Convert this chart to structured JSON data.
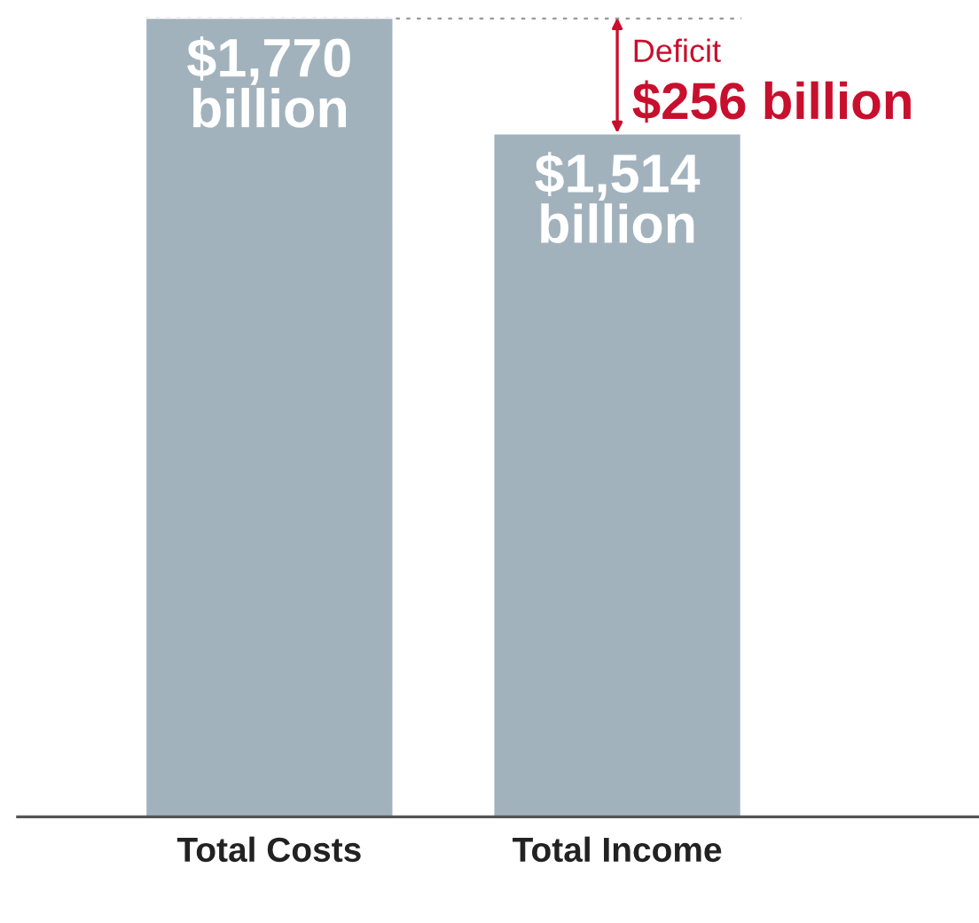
{
  "chart_data": {
    "type": "bar",
    "categories": [
      "Total Costs",
      "Total Income"
    ],
    "values": [
      1770,
      1514
    ],
    "value_labels": [
      "$1,770 billion",
      "$1,514 billion"
    ],
    "color": "#a2b2bd",
    "ylim": [
      0,
      1770
    ],
    "tick_labels": "x",
    "grid": false,
    "ref_lines": [
      {
        "axis": "y",
        "value": 1770,
        "color": "#999999",
        "line_style": "dotted"
      }
    ],
    "annotations": [
      "Deficit",
      "$256 billion"
    ]
  }
}
